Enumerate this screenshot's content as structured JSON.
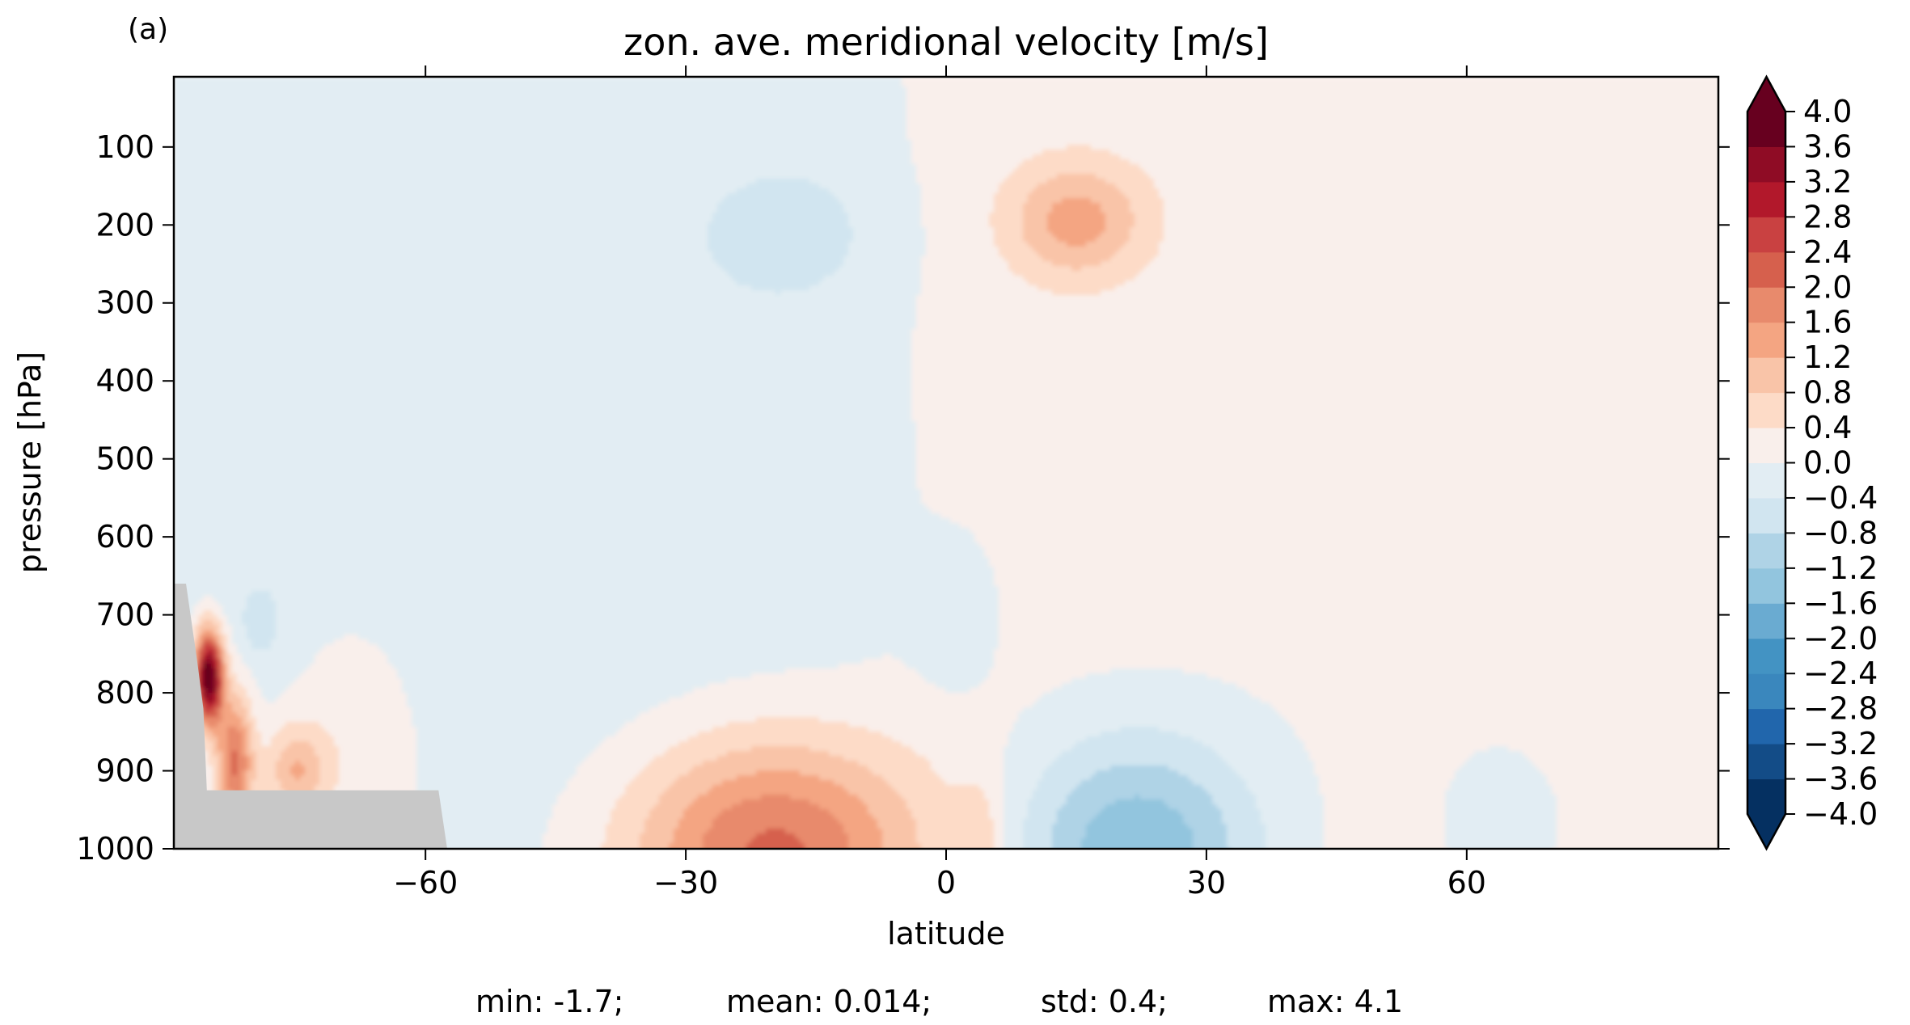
{
  "panel_label": "(a)",
  "stats": {
    "min_label": "min: -1.7;",
    "mean_label": "mean: 0.014;",
    "std_label": "std: 0.4;",
    "max_label": "max: 4.1"
  },
  "chart_data": {
    "type": "contourf",
    "title": "zon. ave. meridional velocity [m/s]",
    "xlabel": "latitude",
    "ylabel": "pressure [hPa]",
    "xlim": [
      -89,
      89
    ],
    "ylim": [
      1000,
      10
    ],
    "y_inverted": true,
    "x_ticks": [
      -60,
      -30,
      0,
      30,
      60
    ],
    "x_tick_labels": [
      "−60",
      "−30",
      "0",
      "30",
      "60"
    ],
    "y_ticks": [
      100,
      200,
      300,
      400,
      500,
      600,
      700,
      800,
      900,
      1000
    ],
    "y_tick_labels": [
      "100",
      "200",
      "300",
      "400",
      "500",
      "600",
      "700",
      "800",
      "900",
      "1000"
    ],
    "colormap": "RdBu_r",
    "extend": "both",
    "levels": [
      -4.0,
      -3.6,
      -3.2,
      -2.8,
      -2.4,
      -2.0,
      -1.6,
      -1.2,
      -0.8,
      -0.4,
      0.0,
      0.4,
      0.8,
      1.2,
      1.6,
      2.0,
      2.4,
      2.8,
      3.2,
      3.6,
      4.0
    ],
    "colorbar_tick_labels": [
      "4.0",
      "3.6",
      "3.2",
      "2.8",
      "2.4",
      "2.0",
      "1.6",
      "1.2",
      "0.8",
      "0.4",
      "0.0",
      "−0.4",
      "−0.8",
      "−1.2",
      "−1.6",
      "−2.0",
      "−2.4",
      "−2.8",
      "−3.2",
      "−3.6",
      "−4.0"
    ],
    "fill_colors": [
      "#053061",
      "#134c87",
      "#2166ac",
      "#3a87bd",
      "#4393c3",
      "#6aabd1",
      "#92c5de",
      "#afd3e6",
      "#d1e5f0",
      "#e2edf3",
      "#f9efeb",
      "#fddbc7",
      "#f9c4a8",
      "#f4a582",
      "#e88a6c",
      "#d6604d",
      "#c94141",
      "#b2182b",
      "#8f0c25",
      "#67001f"
    ],
    "under_color": "#053061",
    "over_color": "#67001f",
    "masked_color": "#c8c8c8",
    "field_features": [
      {
        "name": "northern-hemisphere-positive-background",
        "value": 0.2
      },
      {
        "name": "southern-midlevel-negative-region",
        "value": -0.2
      },
      {
        "name": "upper-tropical-negative-cell",
        "lat": -18,
        "p": 200,
        "value": -0.5
      },
      {
        "name": "upper-tropical-positive-cell",
        "lat": 15,
        "p": 195,
        "value": 1.2
      },
      {
        "name": "southern-low-level-positive-cell",
        "lat": -20,
        "p": 1000,
        "value": 2.2
      },
      {
        "name": "northern-low-level-negative-cell",
        "lat": 22,
        "p": 1000,
        "value": -1.6
      },
      {
        "name": "antarctic-edge-maximum",
        "lat": -85,
        "p": 780,
        "value": 4.1
      }
    ],
    "statistics": {
      "min": -1.7,
      "mean": 0.014,
      "std": 0.4,
      "max": 4.1
    }
  }
}
